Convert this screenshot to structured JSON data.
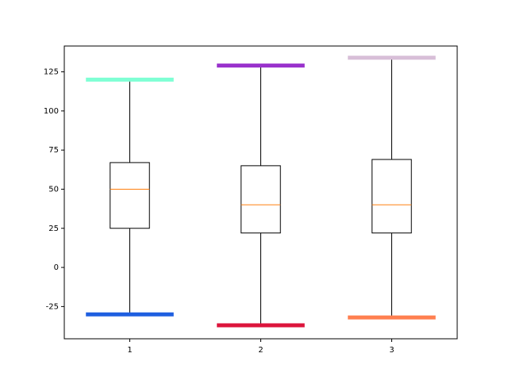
{
  "chart_data": {
    "type": "box",
    "categories": [
      "1",
      "2",
      "3"
    ],
    "boxes": [
      {
        "whislo": -30,
        "q1": 25,
        "med": 50,
        "q3": 67,
        "whishi": 120,
        "low_cap_color": "#1f5fe0",
        "high_cap_color": "#7fffd4"
      },
      {
        "whislo": -37,
        "q1": 22,
        "med": 40,
        "q3": 65,
        "whishi": 129,
        "low_cap_color": "#dc143c",
        "high_cap_color": "#9932cc"
      },
      {
        "whislo": -32,
        "q1": 22,
        "med": 40,
        "q3": 69,
        "whishi": 134,
        "low_cap_color": "#ff7f50",
        "high_cap_color": "#d8bfd8"
      }
    ],
    "median_color": "#ff7f0e",
    "ylim": [
      -45.6,
      141.5
    ],
    "yticks": [
      -25,
      0,
      25,
      50,
      75,
      100,
      125
    ]
  }
}
